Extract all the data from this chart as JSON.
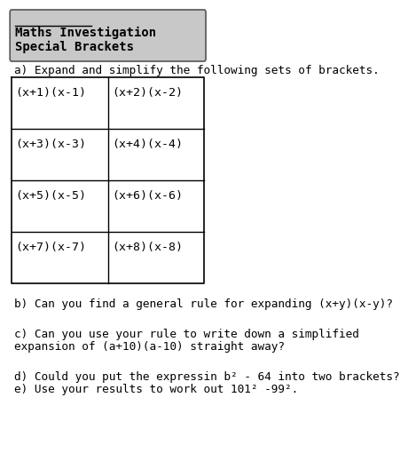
{
  "title_line1": "Maths Investigation",
  "title_line2": "Special Brackets",
  "header_bg": "#c8c8c8",
  "section_a_label": "a) Expand and simplify the following sets of brackets.",
  "table_expressions": [
    [
      "(x+1)(x-1)",
      "(x+2)(x-2)"
    ],
    [
      "(x+3)(x-3)",
      "(x+4)(x-4)"
    ],
    [
      "(x+5)(x-5)",
      "(x+6)(x-6)"
    ],
    [
      "(x+7)(x-7)",
      "(x+8)(x-8)"
    ]
  ],
  "question_b": "b) Can you find a general rule for expanding (x+y)(x-y)?",
  "question_c_line1": "c) Can you use your rule to write down a simplified",
  "question_c_line2": "expansion of (a+10)(a-10) straight away?",
  "question_d": "d) Could you put the expressin b² - 64 into two brackets?",
  "question_e": "e) Use your results to work out 101² -99².",
  "bg_color": "#ffffff",
  "text_color": "#000000",
  "header_border_color": "#555555",
  "table_border_color": "#000000",
  "title_fontsize": 10,
  "body_fontsize": 9.2,
  "cell_fontsize": 9.5
}
